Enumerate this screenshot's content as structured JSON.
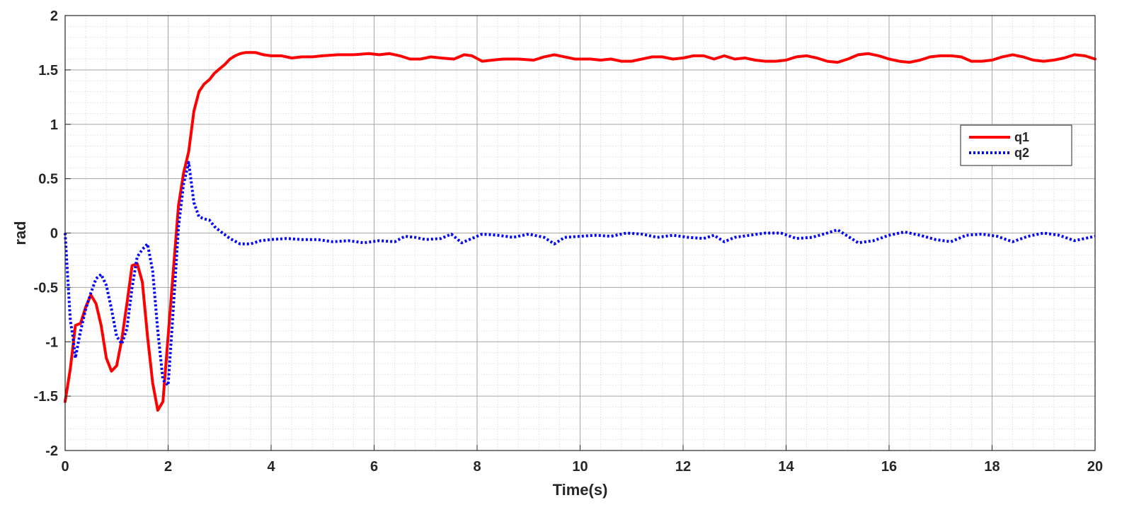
{
  "chart_data": {
    "type": "line",
    "title": "",
    "xlabel": "Time(s)",
    "ylabel": "rad",
    "xlim": [
      0,
      20
    ],
    "ylim": [
      -2,
      2
    ],
    "xticks": [
      0,
      2,
      4,
      6,
      8,
      10,
      12,
      14,
      16,
      18,
      20
    ],
    "yticks": [
      -2,
      -1.5,
      -1,
      -0.5,
      0,
      0.5,
      1,
      1.5,
      2
    ],
    "grid": true,
    "minor_grid": true,
    "legend_position": "right",
    "series": [
      {
        "name": "q1",
        "color": "#ff0000",
        "style": "solid",
        "points": [
          [
            0.0,
            -1.55
          ],
          [
            0.1,
            -1.25
          ],
          [
            0.2,
            -0.85
          ],
          [
            0.3,
            -0.83
          ],
          [
            0.4,
            -0.68
          ],
          [
            0.5,
            -0.57
          ],
          [
            0.6,
            -0.65
          ],
          [
            0.7,
            -0.85
          ],
          [
            0.8,
            -1.15
          ],
          [
            0.9,
            -1.27
          ],
          [
            1.0,
            -1.22
          ],
          [
            1.1,
            -0.98
          ],
          [
            1.2,
            -0.65
          ],
          [
            1.3,
            -0.3
          ],
          [
            1.4,
            -0.28
          ],
          [
            1.5,
            -0.45
          ],
          [
            1.6,
            -0.95
          ],
          [
            1.7,
            -1.38
          ],
          [
            1.8,
            -1.63
          ],
          [
            1.9,
            -1.55
          ],
          [
            2.0,
            -0.95
          ],
          [
            2.1,
            -0.35
          ],
          [
            2.2,
            0.25
          ],
          [
            2.3,
            0.55
          ],
          [
            2.4,
            0.75
          ],
          [
            2.5,
            1.12
          ],
          [
            2.6,
            1.3
          ],
          [
            2.7,
            1.37
          ],
          [
            2.8,
            1.41
          ],
          [
            2.9,
            1.47
          ],
          [
            3.0,
            1.51
          ],
          [
            3.1,
            1.55
          ],
          [
            3.2,
            1.6
          ],
          [
            3.3,
            1.63
          ],
          [
            3.4,
            1.65
          ],
          [
            3.5,
            1.66
          ],
          [
            3.7,
            1.66
          ],
          [
            3.85,
            1.64
          ],
          [
            4.0,
            1.63
          ],
          [
            4.2,
            1.63
          ],
          [
            4.4,
            1.61
          ],
          [
            4.6,
            1.62
          ],
          [
            4.8,
            1.62
          ],
          [
            5.0,
            1.63
          ],
          [
            5.3,
            1.64
          ],
          [
            5.6,
            1.64
          ],
          [
            5.9,
            1.65
          ],
          [
            6.1,
            1.64
          ],
          [
            6.3,
            1.65
          ],
          [
            6.5,
            1.63
          ],
          [
            6.7,
            1.6
          ],
          [
            6.9,
            1.6
          ],
          [
            7.1,
            1.62
          ],
          [
            7.3,
            1.61
          ],
          [
            7.55,
            1.6
          ],
          [
            7.75,
            1.64
          ],
          [
            7.9,
            1.63
          ],
          [
            8.1,
            1.58
          ],
          [
            8.3,
            1.59
          ],
          [
            8.5,
            1.6
          ],
          [
            8.8,
            1.6
          ],
          [
            9.1,
            1.59
          ],
          [
            9.3,
            1.62
          ],
          [
            9.5,
            1.64
          ],
          [
            9.7,
            1.62
          ],
          [
            9.9,
            1.6
          ],
          [
            10.2,
            1.6
          ],
          [
            10.4,
            1.59
          ],
          [
            10.6,
            1.6
          ],
          [
            10.8,
            1.58
          ],
          [
            11.0,
            1.58
          ],
          [
            11.2,
            1.6
          ],
          [
            11.4,
            1.62
          ],
          [
            11.6,
            1.62
          ],
          [
            11.8,
            1.6
          ],
          [
            12.0,
            1.61
          ],
          [
            12.2,
            1.63
          ],
          [
            12.4,
            1.63
          ],
          [
            12.6,
            1.6
          ],
          [
            12.8,
            1.63
          ],
          [
            13.0,
            1.6
          ],
          [
            13.2,
            1.61
          ],
          [
            13.4,
            1.59
          ],
          [
            13.6,
            1.58
          ],
          [
            13.8,
            1.58
          ],
          [
            14.0,
            1.59
          ],
          [
            14.2,
            1.62
          ],
          [
            14.4,
            1.63
          ],
          [
            14.6,
            1.61
          ],
          [
            14.8,
            1.58
          ],
          [
            15.0,
            1.57
          ],
          [
            15.2,
            1.6
          ],
          [
            15.4,
            1.64
          ],
          [
            15.6,
            1.65
          ],
          [
            15.8,
            1.63
          ],
          [
            16.0,
            1.6
          ],
          [
            16.2,
            1.58
          ],
          [
            16.4,
            1.57
          ],
          [
            16.6,
            1.59
          ],
          [
            16.8,
            1.62
          ],
          [
            17.0,
            1.63
          ],
          [
            17.2,
            1.63
          ],
          [
            17.4,
            1.62
          ],
          [
            17.6,
            1.58
          ],
          [
            17.8,
            1.58
          ],
          [
            18.0,
            1.59
          ],
          [
            18.2,
            1.62
          ],
          [
            18.4,
            1.64
          ],
          [
            18.6,
            1.62
          ],
          [
            18.8,
            1.59
          ],
          [
            19.0,
            1.58
          ],
          [
            19.2,
            1.59
          ],
          [
            19.4,
            1.61
          ],
          [
            19.6,
            1.64
          ],
          [
            19.8,
            1.63
          ],
          [
            20.0,
            1.6
          ]
        ]
      },
      {
        "name": "q2",
        "color": "#0000ff",
        "style": "dotted",
        "points": [
          [
            0.0,
            0.0
          ],
          [
            0.05,
            -0.4
          ],
          [
            0.1,
            -0.8
          ],
          [
            0.15,
            -0.95
          ],
          [
            0.2,
            -1.15
          ],
          [
            0.3,
            -0.9
          ],
          [
            0.4,
            -0.7
          ],
          [
            0.5,
            -0.55
          ],
          [
            0.6,
            -0.42
          ],
          [
            0.7,
            -0.38
          ],
          [
            0.8,
            -0.48
          ],
          [
            0.9,
            -0.7
          ],
          [
            1.0,
            -0.95
          ],
          [
            1.1,
            -1.02
          ],
          [
            1.2,
            -0.88
          ],
          [
            1.3,
            -0.5
          ],
          [
            1.4,
            -0.22
          ],
          [
            1.5,
            -0.15
          ],
          [
            1.6,
            -0.1
          ],
          [
            1.7,
            -0.35
          ],
          [
            1.8,
            -0.9
          ],
          [
            1.9,
            -1.35
          ],
          [
            2.0,
            -1.4
          ],
          [
            2.1,
            -0.7
          ],
          [
            2.2,
            0.05
          ],
          [
            2.3,
            0.45
          ],
          [
            2.4,
            0.65
          ],
          [
            2.5,
            0.28
          ],
          [
            2.6,
            0.15
          ],
          [
            2.7,
            0.13
          ],
          [
            2.8,
            0.12
          ],
          [
            2.9,
            0.06
          ],
          [
            3.0,
            0.02
          ],
          [
            3.2,
            -0.05
          ],
          [
            3.4,
            -0.1
          ],
          [
            3.6,
            -0.1
          ],
          [
            3.8,
            -0.07
          ],
          [
            4.0,
            -0.06
          ],
          [
            4.3,
            -0.05
          ],
          [
            4.6,
            -0.06
          ],
          [
            4.9,
            -0.06
          ],
          [
            5.2,
            -0.08
          ],
          [
            5.5,
            -0.07
          ],
          [
            5.8,
            -0.09
          ],
          [
            6.1,
            -0.07
          ],
          [
            6.4,
            -0.08
          ],
          [
            6.6,
            -0.03
          ],
          [
            6.8,
            -0.04
          ],
          [
            7.0,
            -0.06
          ],
          [
            7.3,
            -0.05
          ],
          [
            7.5,
            -0.01
          ],
          [
            7.7,
            -0.09
          ],
          [
            7.9,
            -0.05
          ],
          [
            8.1,
            -0.01
          ],
          [
            8.4,
            -0.02
          ],
          [
            8.7,
            -0.04
          ],
          [
            9.0,
            -0.01
          ],
          [
            9.3,
            -0.04
          ],
          [
            9.5,
            -0.1
          ],
          [
            9.7,
            -0.04
          ],
          [
            10.0,
            -0.03
          ],
          [
            10.3,
            -0.02
          ],
          [
            10.6,
            -0.03
          ],
          [
            10.9,
            0.0
          ],
          [
            11.2,
            -0.01
          ],
          [
            11.5,
            -0.04
          ],
          [
            11.8,
            -0.02
          ],
          [
            12.1,
            -0.04
          ],
          [
            12.4,
            -0.05
          ],
          [
            12.6,
            -0.02
          ],
          [
            12.8,
            -0.08
          ],
          [
            13.0,
            -0.04
          ],
          [
            13.3,
            -0.02
          ],
          [
            13.6,
            0.0
          ],
          [
            13.9,
            0.0
          ],
          [
            14.2,
            -0.05
          ],
          [
            14.5,
            -0.04
          ],
          [
            14.8,
            0.0
          ],
          [
            15.0,
            0.03
          ],
          [
            15.2,
            -0.03
          ],
          [
            15.4,
            -0.09
          ],
          [
            15.7,
            -0.07
          ],
          [
            16.0,
            -0.02
          ],
          [
            16.3,
            0.01
          ],
          [
            16.6,
            -0.02
          ],
          [
            16.9,
            -0.06
          ],
          [
            17.2,
            -0.08
          ],
          [
            17.5,
            -0.02
          ],
          [
            17.8,
            -0.01
          ],
          [
            18.1,
            -0.03
          ],
          [
            18.4,
            -0.08
          ],
          [
            18.7,
            -0.03
          ],
          [
            19.0,
            0.0
          ],
          [
            19.3,
            -0.02
          ],
          [
            19.6,
            -0.07
          ],
          [
            19.8,
            -0.05
          ],
          [
            20.0,
            -0.03
          ]
        ]
      }
    ]
  }
}
